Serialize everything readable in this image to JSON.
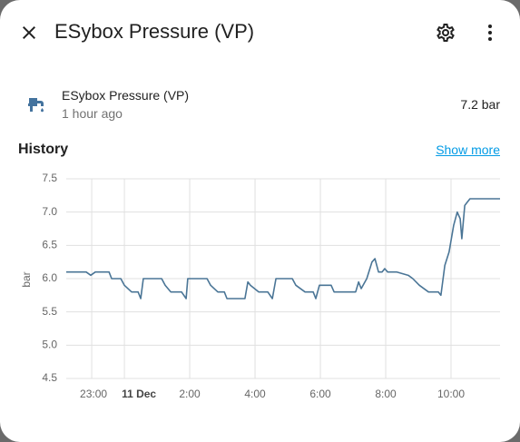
{
  "header": {
    "title": "ESybox Pressure (VP)"
  },
  "entity": {
    "name": "ESybox Pressure (VP)",
    "last_changed": "1 hour ago",
    "state": "7.2 bar"
  },
  "history": {
    "title": "History",
    "link": "Show more"
  },
  "chart_data": {
    "type": "line",
    "y_label": "bar",
    "x": [
      -1.78,
      -1.17,
      -1.03,
      -0.89,
      -0.47,
      -0.39,
      -0.11,
      0,
      0.22,
      0.42,
      0.5,
      0.58,
      1.14,
      1.25,
      1.42,
      1.75,
      1.89,
      1.94,
      2.53,
      2.64,
      2.86,
      3.06,
      3.14,
      3.69,
      3.78,
      3.86,
      4.11,
      4.39,
      4.53,
      4.64,
      5.14,
      5.25,
      5.53,
      5.78,
      5.86,
      5.97,
      6.33,
      6.42,
      7.08,
      7.17,
      7.25,
      7.42,
      7.58,
      7.67,
      7.78,
      7.89,
      7.97,
      8.06,
      8.33,
      8.69,
      8.83,
      9.03,
      9.31,
      9.61,
      9.69,
      9.81,
      9.94,
      10.08,
      10.19,
      10.28,
      10.33,
      10.42,
      10.5,
      10.58,
      11.5
    ],
    "series": [
      {
        "name": "ESybox Pressure (VP)",
        "color": "#4a7596",
        "values": [
          6.1,
          6.1,
          6.05,
          6.1,
          6.1,
          6.0,
          6.0,
          5.9,
          5.8,
          5.8,
          5.7,
          6.0,
          6.0,
          5.9,
          5.8,
          5.8,
          5.7,
          6.0,
          6.0,
          5.9,
          5.8,
          5.8,
          5.7,
          5.7,
          5.95,
          5.9,
          5.8,
          5.8,
          5.7,
          6.0,
          6.0,
          5.9,
          5.8,
          5.8,
          5.7,
          5.9,
          5.9,
          5.8,
          5.8,
          5.95,
          5.85,
          6.0,
          6.25,
          6.3,
          6.1,
          6.1,
          6.15,
          6.1,
          6.1,
          6.05,
          6.0,
          5.9,
          5.8,
          5.8,
          5.75,
          6.2,
          6.4,
          6.8,
          7.0,
          6.9,
          6.6,
          7.1,
          7.15,
          7.2,
          7.2
        ]
      }
    ],
    "xlim": [
      -1.78,
      11.5
    ],
    "xticks": [
      {
        "value": -1,
        "label": "23:00"
      },
      {
        "value": 0,
        "label": "11 Dec"
      },
      {
        "value": 2,
        "label": "2:00"
      },
      {
        "value": 4,
        "label": "4:00"
      },
      {
        "value": 6,
        "label": "6:00"
      },
      {
        "value": 8,
        "label": "8:00"
      },
      {
        "value": 10,
        "label": "10:00"
      }
    ],
    "ylim": [
      4.5,
      7.5
    ],
    "yticks": [
      4.5,
      {
        "value": 5,
        "label": "5.0"
      },
      5.5,
      {
        "value": 6,
        "label": "6.0"
      },
      6.5,
      {
        "value": 7,
        "label": "7.0"
      },
      7.5
    ],
    "grid": true
  }
}
